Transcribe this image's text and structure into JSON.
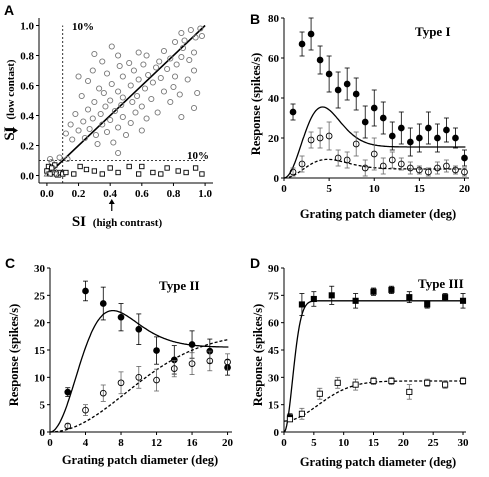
{
  "chart_data": [
    {
      "panel": "A",
      "type": "scatter",
      "xlabel_main": "SI",
      "xlabel_paren": "(high contrast)",
      "ylabel_main": "SI",
      "ylabel_paren": "(low contast)",
      "xlim": [
        -0.05,
        1.05
      ],
      "ylim": [
        -0.05,
        1.05
      ],
      "xticks": [
        "0.0",
        "0.2",
        "0.4",
        "0.6",
        "0.8",
        "1.0"
      ],
      "yticks": [
        "0.0",
        "0.2",
        "0.4",
        "0.6",
        "0.8",
        "1.0"
      ],
      "annotations": [
        "10%",
        "10%"
      ],
      "threshold": 0.1,
      "arrow_values": {
        "x": 0.41,
        "y": 0.3
      },
      "diagonal": [
        [
          0,
          0
        ],
        [
          1,
          1
        ]
      ],
      "series": [
        {
          "marker": "circle",
          "points": [
            [
              0.97,
              0.98
            ],
            [
              0.91,
              0.97
            ],
            [
              0.85,
              0.95
            ],
            [
              0.98,
              0.93
            ],
            [
              0.94,
              0.92
            ],
            [
              0.87,
              0.9
            ],
            [
              0.81,
              0.89
            ],
            [
              0.41,
              0.86
            ],
            [
              0.86,
              0.85
            ],
            [
              0.74,
              0.83
            ],
            [
              0.93,
              0.82
            ],
            [
              0.58,
              0.82
            ],
            [
              0.3,
              0.81
            ],
            [
              0.45,
              0.8
            ],
            [
              0.63,
              0.8
            ],
            [
              0.85,
              0.79
            ],
            [
              0.78,
              0.78
            ],
            [
              0.9,
              0.77
            ],
            [
              0.71,
              0.76
            ],
            [
              0.35,
              0.76
            ],
            [
              0.52,
              0.75
            ],
            [
              0.61,
              0.74
            ],
            [
              0.82,
              0.74
            ],
            [
              0.46,
              0.73
            ],
            [
              0.69,
              0.72
            ],
            [
              0.76,
              0.71
            ],
            [
              0.29,
              0.7
            ],
            [
              0.55,
              0.7
            ],
            [
              0.93,
              0.7
            ],
            [
              0.38,
              0.68
            ],
            [
              0.64,
              0.67
            ],
            [
              0.81,
              0.66
            ],
            [
              0.2,
              0.66
            ],
            [
              0.48,
              0.66
            ],
            [
              0.72,
              0.65
            ],
            [
              0.58,
              0.64
            ],
            [
              0.89,
              0.64
            ],
            [
              0.26,
              0.63
            ],
            [
              0.67,
              0.62
            ],
            [
              0.41,
              0.61
            ],
            [
              0.53,
              0.6
            ],
            [
              0.8,
              0.59
            ],
            [
              0.33,
              0.58
            ],
            [
              0.62,
              0.58
            ],
            [
              0.45,
              0.56
            ],
            [
              0.74,
              0.56
            ],
            [
              0.95,
              0.55
            ],
            [
              0.36,
              0.55
            ],
            [
              0.84,
              0.54
            ],
            [
              0.57,
              0.53
            ],
            [
              0.22,
              0.53
            ],
            [
              0.48,
              0.52
            ],
            [
              0.66,
              0.51
            ],
            [
              0.4,
              0.5
            ],
            [
              0.54,
              0.49
            ],
            [
              0.3,
              0.49
            ],
            [
              0.78,
              0.49
            ],
            [
              0.47,
              0.47
            ],
            [
              0.37,
              0.46
            ],
            [
              0.6,
              0.46
            ],
            [
              0.93,
              0.45
            ],
            [
              0.26,
              0.44
            ],
            [
              0.43,
              0.43
            ],
            [
              0.56,
              0.42
            ],
            [
              0.7,
              0.42
            ],
            [
              0.34,
              0.41
            ],
            [
              0.18,
              0.41
            ],
            [
              0.48,
              0.39
            ],
            [
              0.85,
              0.39
            ],
            [
              0.29,
              0.38
            ],
            [
              0.63,
              0.38
            ],
            [
              0.4,
              0.37
            ],
            [
              0.23,
              0.36
            ],
            [
              0.53,
              0.35
            ],
            [
              0.15,
              0.34
            ],
            [
              0.35,
              0.34
            ],
            [
              0.45,
              0.32
            ],
            [
              0.27,
              0.31
            ],
            [
              0.2,
              0.3
            ],
            [
              0.6,
              0.3
            ],
            [
              0.38,
              0.29
            ],
            [
              0.12,
              0.28
            ],
            [
              0.31,
              0.27
            ],
            [
              0.5,
              0.27
            ],
            [
              0.24,
              0.25
            ],
            [
              0.16,
              0.24
            ],
            [
              0.42,
              0.22
            ],
            [
              0.32,
              0.21
            ],
            [
              0.45,
              0.15
            ],
            [
              0.02,
              0.11
            ],
            [
              0.08,
              0.12
            ],
            [
              0.13,
              0.11
            ],
            [
              0.03,
              0.09
            ]
          ]
        },
        {
          "marker": "square",
          "points": [
            [
              0.01,
              0.06
            ],
            [
              0.05,
              0.07
            ],
            [
              0.03,
              0.05
            ],
            [
              0.0,
              0.03
            ],
            [
              0.04,
              0.02
            ],
            [
              0.02,
              0.01
            ],
            [
              0.08,
              0.02
            ],
            [
              0.06,
              0.01
            ],
            [
              0.1,
              0.01
            ],
            [
              0.12,
              0.02
            ],
            [
              0.17,
              0.01
            ],
            [
              0.21,
              0.06
            ],
            [
              0.25,
              0.04
            ],
            [
              0.3,
              0.03
            ],
            [
              0.35,
              0.01
            ],
            [
              0.4,
              0.05
            ],
            [
              0.45,
              0.02
            ],
            [
              0.52,
              0.06
            ],
            [
              0.58,
              0.01
            ],
            [
              0.6,
              0.06
            ],
            [
              0.67,
              0.02
            ],
            [
              0.72,
              0.01
            ],
            [
              0.76,
              0.05
            ],
            [
              0.83,
              0.03
            ],
            [
              0.88,
              0.02
            ],
            [
              0.94,
              0.05
            ],
            [
              0.98,
              0.01
            ]
          ]
        },
        {
          "marker": "triangle",
          "points": [
            [
              0.0,
              0.01
            ],
            [
              0.07,
              0.0
            ],
            [
              0.05,
              0.04
            ]
          ]
        }
      ]
    },
    {
      "panel": "B",
      "type": "line",
      "title": "Type I",
      "xlabel": "Grating patch diameter (deg)",
      "ylabel": "Response (spikes/s)",
      "xlim": [
        0,
        20.5
      ],
      "ylim": [
        0,
        80
      ],
      "xticks": [
        0,
        5,
        10,
        15,
        20
      ],
      "yticks": [
        0,
        20,
        40,
        60,
        80
      ],
      "series": [
        {
          "marker": "filled-circle",
          "line": "solid",
          "x": [
            1,
            2,
            3,
            4,
            5,
            6,
            7,
            8,
            9,
            10,
            11,
            12,
            13,
            14,
            15,
            16,
            17,
            18,
            19,
            20
          ],
          "y": [
            33,
            67,
            72,
            59,
            52,
            44,
            47,
            42,
            28,
            35,
            30,
            21,
            25,
            18,
            20,
            25,
            20,
            24,
            20,
            10
          ],
          "err": [
            4,
            6,
            8,
            7,
            9,
            9,
            8,
            8,
            8,
            9,
            8,
            7,
            8,
            7,
            7,
            8,
            7,
            6,
            5,
            4
          ],
          "fit": {
            "a": 0,
            "ke": 95,
            "se": 3.2,
            "ki": 79.5,
            "si": 4.8,
            "baseline": 0
          }
        },
        {
          "marker": "open-circle",
          "line": "dashed",
          "x": [
            1,
            2,
            3,
            4,
            5,
            6,
            7,
            8,
            9,
            10,
            11,
            12,
            13,
            14,
            15,
            16,
            17,
            18,
            19,
            20
          ],
          "y": [
            3,
            7,
            19,
            20,
            21,
            10,
            9,
            17,
            5,
            12,
            6,
            9,
            7,
            5,
            4,
            3,
            5,
            6,
            4,
            3
          ],
          "err": [
            2,
            4,
            4,
            5,
            7,
            4,
            4,
            6,
            4,
            8,
            4,
            4,
            3,
            3,
            2,
            2,
            3,
            3,
            2,
            2
          ],
          "fit": {
            "a": 0,
            "ke": 22,
            "se": 3.5,
            "ki": 17.5,
            "si": 5.5,
            "baseline": 0
          }
        }
      ]
    },
    {
      "panel": "C",
      "type": "line",
      "title": "Type II",
      "xlabel": "Grating patch diameter (deg)",
      "ylabel": "Response (spikes/s)",
      "xlim": [
        0,
        20.5
      ],
      "ylim": [
        0,
        30
      ],
      "xticks": [
        0,
        4,
        8,
        12,
        16,
        20
      ],
      "yticks": [
        0,
        5,
        10,
        15,
        20,
        25,
        30
      ],
      "series": [
        {
          "marker": "filled-circle",
          "line": "solid",
          "x": [
            2,
            4,
            6,
            8,
            10,
            12,
            14,
            16,
            18,
            20
          ],
          "y": [
            7.3,
            25.8,
            23.5,
            21.0,
            18.8,
            14.9,
            13.2,
            16.0,
            14.8,
            11.8
          ],
          "err": [
            0.8,
            1.8,
            3.0,
            2.5,
            2.8,
            2.5,
            2.6,
            2.5,
            2.2,
            1.4
          ],
          "fit": {
            "a": 0,
            "ke": 37,
            "se": 4.5,
            "ki": 21.5,
            "si": 8,
            "baseline": 0
          }
        },
        {
          "marker": "open-circle",
          "line": "dashed",
          "x": [
            2,
            4,
            6,
            8,
            10,
            12,
            14,
            16,
            18,
            20
          ],
          "y": [
            1.1,
            4.0,
            7.1,
            9.0,
            10.0,
            9.5,
            11.6,
            12.5,
            13.0,
            12.8
          ],
          "err": [
            0.4,
            1.0,
            1.5,
            2.0,
            2.0,
            2.0,
            1.5,
            2.0,
            1.8,
            1.5
          ],
          "fit": {
            "a": 0,
            "ke": 18,
            "se": 12,
            "ki": 0,
            "si": 10,
            "baseline": 0
          }
        }
      ]
    },
    {
      "panel": "D",
      "type": "line",
      "title": "Type III",
      "xlabel": "Grating patch diameter (deg)",
      "ylabel": "Response (spikes/s)",
      "xlim": [
        0,
        30.5
      ],
      "ylim": [
        0,
        90
      ],
      "xticks": [
        0,
        5,
        10,
        15,
        20,
        25,
        30
      ],
      "yticks": [
        0,
        15,
        30,
        45,
        60,
        75,
        90
      ],
      "series": [
        {
          "marker": "filled-square",
          "line": "solid",
          "x": [
            1,
            3,
            5,
            8,
            12,
            15,
            18,
            21,
            24,
            27,
            30
          ],
          "y": [
            8,
            70,
            73,
            75,
            72,
            77,
            78,
            74,
            70,
            74,
            72
          ],
          "err": [
            2,
            6,
            4,
            5,
            4,
            2,
            2,
            3,
            2,
            2,
            4
          ],
          "fit": {
            "a": 0,
            "ke": 72,
            "se": 2,
            "ki": 0,
            "si": 5,
            "baseline": 0
          }
        },
        {
          "marker": "open-square",
          "line": "dashed",
          "x": [
            1,
            3,
            6,
            9,
            12,
            15,
            18,
            21,
            24,
            27,
            30
          ],
          "y": [
            7,
            10,
            21,
            27,
            26,
            28,
            28,
            22,
            27,
            26,
            28
          ],
          "err": [
            1,
            3,
            3,
            3,
            3,
            2,
            2,
            4,
            2,
            2,
            2
          ],
          "fit": {
            "a": 0,
            "ke": 22,
            "se": 8,
            "ki": 0,
            "si": 5,
            "baseline": 6
          }
        }
      ]
    }
  ]
}
